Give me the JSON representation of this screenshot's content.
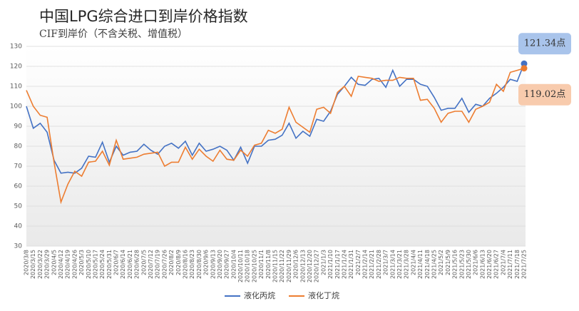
{
  "chart_data": {
    "type": "line",
    "title": "中国LPG综合进口到岸价格指数",
    "subtitle": "CIF到岸价（不含关税、增值税）",
    "categories": [
      "2020/3/8",
      "2020/3/15",
      "2020/3/22",
      "2020/3/29",
      "2020/4/5",
      "2020/4/12",
      "2020/4/19",
      "2020/4/26",
      "2020/5/3",
      "2020/5/10",
      "2020/5/17",
      "2020/5/24",
      "2020/5/31",
      "2020/6/7",
      "2020/6/14",
      "2020/6/21",
      "2020/6/28",
      "2020/7/5",
      "2020/7/12",
      "2020/7/19",
      "2020/7/26",
      "2020/8/2",
      "2020/8/9",
      "2020/8/16",
      "2020/8/23",
      "2020/8/30",
      "2020/9/6",
      "2020/9/13",
      "2020/9/20",
      "2020/9/27",
      "2020/10/4",
      "2020/10/11",
      "2020/10/18",
      "2020/10/25",
      "2020/11/1",
      "2020/11/8",
      "2020/11/15",
      "2020/11/22",
      "2020/11/29",
      "2020/12/6",
      "2020/12/13",
      "2020/12/20",
      "2020/12/27",
      "2021/1/3",
      "2021/1/10",
      "2021/1/17",
      "2021/1/24",
      "2021/1/31",
      "2021/2/7",
      "2021/2/14",
      "2021/2/21",
      "2021/2/28",
      "2021/3/7",
      "2021/3/14",
      "2021/3/21",
      "2021/3/28",
      "2021/4/4",
      "2021/4/11",
      "2021/4/18",
      "2021/4/25",
      "2021/5/2",
      "2021/5/9",
      "2021/5/16",
      "2021/5/23",
      "2021/5/30",
      "2021/6/6",
      "2021/6/13",
      "2021/6/20",
      "2021/6/27",
      "2021/7/4",
      "2021/7/11",
      "2021/7/18",
      "2021/7/25"
    ],
    "series": [
      {
        "name": "液化丙烷",
        "color": "#4472c4",
        "label_fill": "#a9c4eb",
        "values": [
          100,
          89,
          91.5,
          87,
          73,
          66.5,
          67,
          66.5,
          69,
          75,
          74.5,
          82,
          72,
          80,
          75.5,
          77,
          77.5,
          81,
          78,
          76,
          80,
          81.5,
          79,
          82.5,
          75.5,
          81.5,
          77.5,
          78.5,
          80,
          78,
          73,
          79.5,
          71.5,
          80,
          80,
          83,
          83.5,
          85.5,
          91.5,
          84,
          87.5,
          85,
          93.5,
          92.5,
          97.5,
          106,
          110,
          114.5,
          111,
          110.5,
          113.5,
          114,
          109.5,
          118,
          110,
          113.5,
          113.5,
          111,
          110,
          104.5,
          98,
          99,
          99,
          104,
          97,
          101,
          100,
          104,
          106.5,
          109.5,
          113.5,
          112.5,
          121.34
        ],
        "value_labels": [
          null,
          null,
          null,
          null,
          null,
          null,
          null,
          null,
          null,
          null,
          null,
          null,
          null,
          null,
          null,
          null,
          null,
          null,
          null,
          null,
          null,
          null,
          null,
          null,
          null,
          null,
          null,
          null,
          null,
          null,
          null,
          null,
          null,
          null,
          null,
          null,
          null,
          null,
          null,
          null,
          null,
          null,
          null,
          null,
          null,
          null,
          null,
          null,
          null,
          null,
          null,
          null,
          null,
          null,
          null,
          null,
          null,
          null,
          null,
          null,
          null,
          null,
          null,
          null,
          null,
          null,
          null,
          null,
          null,
          null,
          null,
          null,
          "121.34点"
        ]
      },
      {
        "name": "液化丁烷",
        "color": "#ed7d31",
        "label_fill": "#f8cbad",
        "values": [
          108,
          100,
          95.5,
          94.5,
          72,
          52,
          61,
          67.5,
          65,
          72,
          72.5,
          77.5,
          70.5,
          83,
          73.5,
          74,
          74.5,
          76,
          76.5,
          77,
          70,
          72,
          72,
          79.5,
          73.5,
          78.5,
          75,
          72.5,
          78,
          73.5,
          73,
          78,
          75,
          80.5,
          81.5,
          88,
          86.5,
          88.5,
          99.5,
          92,
          89.5,
          87,
          98.5,
          99.5,
          96.5,
          107,
          110,
          105,
          115,
          114.5,
          114,
          112.5,
          113,
          113,
          114.5,
          114,
          114,
          103,
          103.5,
          99,
          92,
          96.5,
          97.5,
          97.5,
          92,
          98.5,
          100,
          102,
          111,
          107.5,
          117,
          118,
          119.02
        ],
        "value_labels": [
          null,
          null,
          null,
          null,
          null,
          null,
          null,
          null,
          null,
          null,
          null,
          null,
          null,
          null,
          null,
          null,
          null,
          null,
          null,
          null,
          null,
          null,
          null,
          null,
          null,
          null,
          null,
          null,
          null,
          null,
          null,
          null,
          null,
          null,
          null,
          null,
          null,
          null,
          null,
          null,
          null,
          null,
          null,
          null,
          null,
          null,
          null,
          null,
          null,
          null,
          null,
          null,
          null,
          null,
          null,
          null,
          null,
          null,
          null,
          null,
          null,
          null,
          null,
          null,
          null,
          null,
          null,
          null,
          null,
          null,
          null,
          null,
          "119.02点"
        ]
      }
    ],
    "ylim": [
      30,
      130
    ],
    "yticks": [
      30,
      40,
      50,
      60,
      70,
      80,
      90,
      100,
      110,
      120,
      130
    ],
    "grid": true,
    "legend": "bottom"
  }
}
